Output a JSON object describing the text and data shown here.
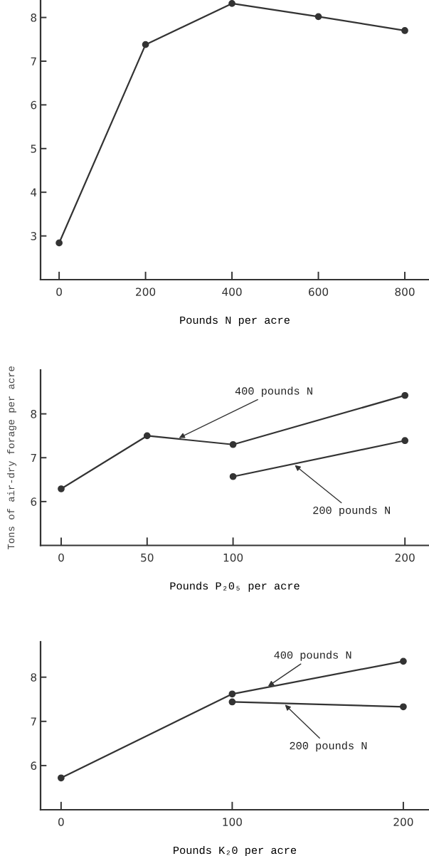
{
  "chart_data": [
    {
      "type": "line",
      "xlabel": "Pounds N per acre",
      "xlim": [
        -43,
        856
      ],
      "ylim": [
        2,
        8.4
      ],
      "xticks": [
        0,
        200,
        400,
        600,
        800
      ],
      "yticks": [
        3,
        4,
        5,
        6,
        7,
        8
      ],
      "marker": "circle",
      "grid": false,
      "legend": false,
      "series": [
        {
          "color": "#333333",
          "x": [
            0,
            200,
            400,
            600,
            800
          ],
          "values": [
            2.84,
            7.38,
            8.32,
            8.02,
            7.7
          ]
        }
      ]
    },
    {
      "type": "line",
      "xlabel": "Pounds P₂0₅ per acre",
      "ylabel": "Tons of air-dry forage per acre",
      "xlim": [
        -12,
        214
      ],
      "ylim": [
        5,
        9
      ],
      "xticks": [
        0,
        50,
        100,
        200
      ],
      "yticks": [
        6,
        7,
        8
      ],
      "marker": "circle",
      "grid": false,
      "legend": false,
      "series": [
        {
          "name": "400 pounds N",
          "color": "#333333",
          "x": [
            0,
            50,
            100,
            200
          ],
          "values": [
            6.29,
            7.5,
            7.3,
            8.42
          ]
        },
        {
          "name": "200 pounds N",
          "color": "#333333",
          "x": [
            100,
            200
          ],
          "values": [
            6.57,
            7.39
          ]
        }
      ]
    },
    {
      "type": "line",
      "xlabel": "Pounds K₂0 per acre",
      "xlim": [
        -12,
        215
      ],
      "ylim": [
        5,
        8.8
      ],
      "xticks": [
        0,
        100,
        200
      ],
      "yticks": [
        6,
        7,
        8
      ],
      "marker": "circle",
      "grid": false,
      "legend": false,
      "series": [
        {
          "name": "400 pounds N",
          "color": "#333333",
          "x": [
            0,
            100,
            200
          ],
          "values": [
            5.72,
            7.62,
            8.36
          ]
        },
        {
          "name": "200 pounds N",
          "color": "#333333",
          "x": [
            100,
            200
          ],
          "values": [
            7.44,
            7.33
          ]
        }
      ]
    }
  ]
}
